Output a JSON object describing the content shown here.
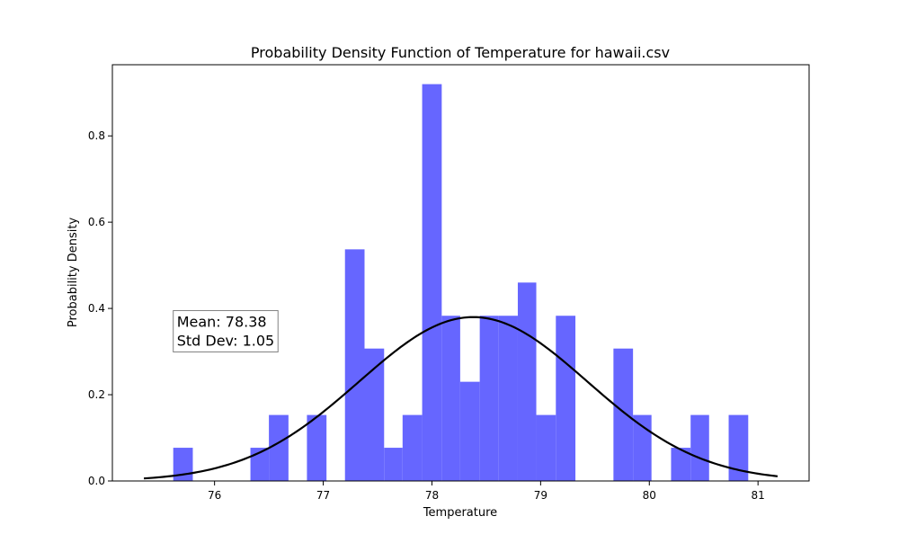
{
  "chart_data": {
    "type": "bar",
    "title": "Probability Density Function of Temperature for hawaii.csv",
    "xlabel": "Temperature",
    "ylabel": "Probability Density",
    "xlim": [
      75.06,
      81.47
    ],
    "ylim": [
      0,
      0.965
    ],
    "xticks": [
      76,
      77,
      78,
      79,
      80,
      81
    ],
    "yticks": [
      0.0,
      0.2,
      0.4,
      0.6,
      0.8
    ],
    "grid": false,
    "bar_color": "#6666ff",
    "curve_color": "#000000",
    "histogram": {
      "bins": [
        {
          "x0": 75.62,
          "x1": 75.8,
          "density": 0.077
        },
        {
          "x0": 76.33,
          "x1": 76.5,
          "density": 0.077
        },
        {
          "x0": 76.5,
          "x1": 76.68,
          "density": 0.153
        },
        {
          "x0": 76.85,
          "x1": 77.03,
          "density": 0.153
        },
        {
          "x0": 77.2,
          "x1": 77.38,
          "density": 0.537
        },
        {
          "x0": 77.38,
          "x1": 77.56,
          "density": 0.307
        },
        {
          "x0": 77.56,
          "x1": 77.73,
          "density": 0.077
        },
        {
          "x0": 77.73,
          "x1": 77.91,
          "density": 0.153
        },
        {
          "x0": 77.91,
          "x1": 78.09,
          "density": 0.92
        },
        {
          "x0": 78.09,
          "x1": 78.26,
          "density": 0.383
        },
        {
          "x0": 78.26,
          "x1": 78.44,
          "density": 0.23
        },
        {
          "x0": 78.44,
          "x1": 78.61,
          "density": 0.383
        },
        {
          "x0": 78.61,
          "x1": 78.79,
          "density": 0.383
        },
        {
          "x0": 78.79,
          "x1": 78.96,
          "density": 0.46
        },
        {
          "x0": 78.96,
          "x1": 79.14,
          "density": 0.153
        },
        {
          "x0": 79.14,
          "x1": 79.32,
          "density": 0.383
        },
        {
          "x0": 79.67,
          "x1": 79.85,
          "density": 0.307
        },
        {
          "x0": 79.85,
          "x1": 80.02,
          "density": 0.153
        },
        {
          "x0": 80.2,
          "x1": 80.38,
          "density": 0.077
        },
        {
          "x0": 80.38,
          "x1": 80.55,
          "density": 0.153
        },
        {
          "x0": 80.73,
          "x1": 80.91,
          "density": 0.153
        }
      ]
    },
    "pdf_curve": {
      "mean": 78.38,
      "std": 1.05,
      "x_range": [
        75.35,
        81.18
      ]
    },
    "annotation": {
      "lines": [
        "Mean: 78.38",
        "Std Dev: 1.05"
      ],
      "anchor": {
        "x": 75.62,
        "y": 0.345
      }
    }
  }
}
